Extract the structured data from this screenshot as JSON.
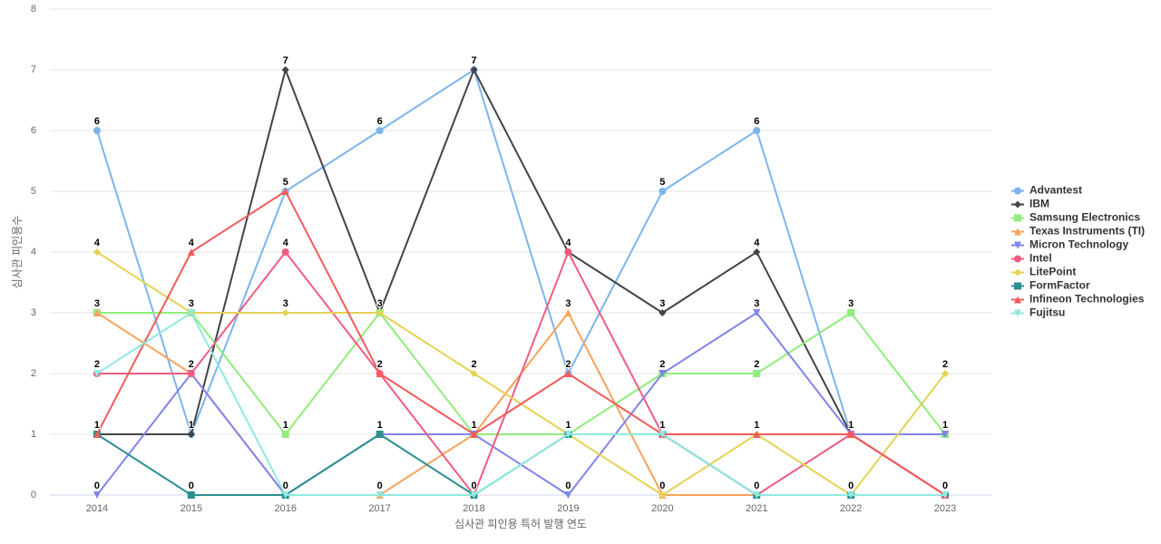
{
  "chart_data": {
    "type": "line",
    "x_label": "심사관 피인용 특허 발행 연도",
    "y_label": "심사관 피인용수",
    "categories": [
      "2014",
      "2015",
      "2016",
      "2017",
      "2018",
      "2019",
      "2020",
      "2021",
      "2022",
      "2023"
    ],
    "ylim": [
      0,
      8
    ],
    "yticks": [
      0,
      1,
      2,
      3,
      4,
      5,
      6,
      7,
      8
    ],
    "grid": true,
    "legend": "right",
    "series": [
      {
        "name": "Advantest",
        "color": "#7cb5ec",
        "marker": "circle",
        "values": [
          6,
          1,
          5,
          6,
          7,
          2,
          5,
          6,
          1,
          1
        ]
      },
      {
        "name": "IBM",
        "color": "#434348",
        "marker": "diamond",
        "values": [
          1,
          1,
          7,
          3,
          7,
          4,
          3,
          4,
          1,
          0
        ]
      },
      {
        "name": "Samsung Electronics",
        "color": "#90ed7d",
        "marker": "square",
        "values": [
          3,
          3,
          1,
          3,
          1,
          1,
          2,
          2,
          3,
          1
        ]
      },
      {
        "name": "Texas Instruments (TI)",
        "color": "#f7a35c",
        "marker": "triangle",
        "values": [
          3,
          2,
          0,
          0,
          1,
          3,
          0,
          0,
          0,
          0
        ]
      },
      {
        "name": "Micron Technology",
        "color": "#8085e9",
        "marker": "triangle-down",
        "values": [
          0,
          2,
          0,
          1,
          1,
          0,
          2,
          3,
          1,
          1
        ]
      },
      {
        "name": "Intel",
        "color": "#f15c80",
        "marker": "circle",
        "values": [
          2,
          2,
          4,
          2,
          0,
          4,
          1,
          0,
          1,
          0
        ]
      },
      {
        "name": "LitePoint",
        "color": "#e4d354",
        "marker": "diamond",
        "values": [
          4,
          3,
          3,
          3,
          2,
          1,
          0,
          1,
          0,
          2
        ]
      },
      {
        "name": "FormFactor",
        "color": "#2b908f",
        "marker": "square",
        "values": [
          1,
          0,
          0,
          1,
          0,
          1,
          1,
          0,
          0,
          0
        ]
      },
      {
        "name": "Infineon Technologies",
        "color": "#f45b5b",
        "marker": "triangle",
        "values": [
          1,
          4,
          5,
          2,
          1,
          2,
          1,
          1,
          1,
          0
        ]
      },
      {
        "name": "Fujitsu",
        "color": "#91e8e1",
        "marker": "triangle-down",
        "values": [
          2,
          3,
          0,
          0,
          0,
          1,
          1,
          0,
          0,
          0
        ]
      }
    ]
  }
}
